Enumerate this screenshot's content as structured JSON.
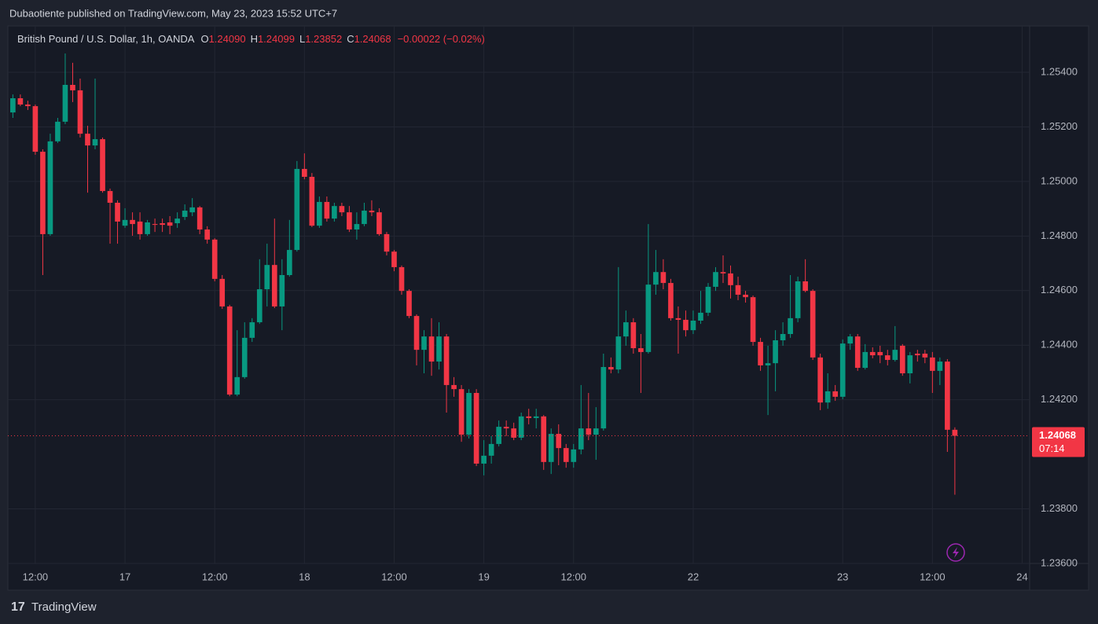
{
  "header": {
    "title": "Dubaotiente published on TradingView.com, May 23, 2023 15:52 UTC+7"
  },
  "footer": {
    "brand": "TradingView"
  },
  "chart_data": {
    "type": "candlestick",
    "legend": {
      "symbol": "British Pound / U.S. Dollar, 1h, OANDA",
      "ohlc": [
        {
          "key": "O",
          "value": "1.24090"
        },
        {
          "key": "H",
          "value": "1.24099"
        },
        {
          "key": "L",
          "value": "1.23852"
        },
        {
          "key": "C",
          "value": "1.24068"
        }
      ],
      "change": "−0.00022 (−0.02%)"
    },
    "up_color": "#089981",
    "down_color": "#f23645",
    "grid": true,
    "ylim": [
      1.236,
      1.2557
    ],
    "yticks": [
      {
        "value": 1.236,
        "label": "1.23600"
      },
      {
        "value": 1.238,
        "label": "1.23800"
      },
      {
        "value": 1.242,
        "label": "1.24200"
      },
      {
        "value": 1.244,
        "label": "1.24400"
      },
      {
        "value": 1.246,
        "label": "1.24600"
      },
      {
        "value": 1.248,
        "label": "1.24800"
      },
      {
        "value": 1.25,
        "label": "1.25000"
      },
      {
        "value": 1.252,
        "label": "1.25200"
      },
      {
        "value": 1.254,
        "label": "1.25400"
      }
    ],
    "xlim": [
      -0.67,
      136
    ],
    "xticks": [
      {
        "value": 3,
        "label": "12:00"
      },
      {
        "value": 15,
        "label": "17"
      },
      {
        "value": 27,
        "label": "12:00"
      },
      {
        "value": 39,
        "label": "18"
      },
      {
        "value": 51,
        "label": "12:00"
      },
      {
        "value": 63,
        "label": "19"
      },
      {
        "value": 75,
        "label": "12:00"
      },
      {
        "value": 91,
        "label": "22"
      },
      {
        "value": 111,
        "label": "23"
      },
      {
        "value": 123,
        "label": "12:00"
      },
      {
        "value": 135,
        "label": "24"
      }
    ],
    "last_price": {
      "value": 1.24068,
      "label": "1.24068",
      "countdown": "07:14"
    },
    "open": [
      1.25253,
      1.25305,
      1.25282,
      1.25276,
      1.25109,
      1.24807,
      1.25147,
      1.25219,
      1.25354,
      1.25334,
      1.25175,
      1.25132,
      1.25155,
      1.24965,
      1.24922,
      1.24838,
      1.24859,
      1.24853,
      1.24807,
      1.24844,
      1.24847,
      1.2485,
      1.24847,
      1.2487,
      1.24887,
      1.24905,
      1.24824,
      1.24787,
      1.24643,
      1.24542,
      1.24219,
      1.24283,
      1.24427,
      1.24484,
      1.24605,
      1.24694,
      1.24542,
      1.24657,
      1.24749,
      1.25046,
      1.25017,
      1.24838,
      1.24925,
      1.24864,
      1.2491,
      1.24887,
      1.24824,
      1.24844,
      1.24893,
      1.24887,
      1.24807,
      1.24743,
      1.24686,
      1.24599,
      1.24507,
      1.24383,
      1.24432,
      1.2434,
      1.24432,
      1.24254,
      1.24239,
      1.24072,
      1.24225,
      1.23966,
      1.23995,
      1.24038,
      1.24101,
      1.24095,
      1.24061,
      1.24139,
      1.24133,
      1.24139,
      1.23972,
      1.24075,
      1.24023,
      1.23972,
      1.24018,
      1.24095,
      1.24072,
      1.24095,
      1.2432,
      1.24311,
      1.24432,
      1.24484,
      1.24389,
      1.24375,
      1.24622,
      1.24668,
      1.24628,
      1.24499,
      1.24493,
      1.24455,
      1.2449,
      1.24519,
      1.24614,
      1.24668,
      1.24663,
      1.2462,
      1.24585,
      1.24576,
      1.24412,
      1.24326,
      1.24334,
      1.24418,
      1.24441,
      1.24499,
      1.24634,
      1.24599,
      1.24355,
      1.2419,
      1.24231,
      1.24211,
      1.24406,
      1.24432,
      1.24317,
      1.24375,
      1.24375,
      1.24363,
      1.24346,
      1.24398,
      1.24297,
      1.24369,
      1.24369,
      1.24355,
      1.24306,
      1.2434,
      1.2409
    ],
    "high": [
      1.25319,
      1.25319,
      1.25296,
      1.25282,
      1.25118,
      1.25175,
      1.25233,
      1.25469,
      1.25435,
      1.25377,
      1.25204,
      1.25377,
      1.25161,
      1.24974,
      1.24931,
      1.24902,
      1.24887,
      1.24887,
      1.24859,
      1.24864,
      1.24864,
      1.24873,
      1.24887,
      1.24916,
      1.24939,
      1.2491,
      1.24836,
      1.24792,
      1.24657,
      1.24548,
      1.24455,
      1.24484,
      1.24499,
      1.24715,
      1.24772,
      1.24864,
      1.24715,
      1.24859,
      1.25075,
      1.25103,
      1.25031,
      1.24945,
      1.24945,
      1.24922,
      1.24922,
      1.2491,
      1.24887,
      1.24922,
      1.24931,
      1.24902,
      1.24815,
      1.24749,
      1.24692,
      1.24605,
      1.24513,
      1.24455,
      1.24499,
      1.24484,
      1.24441,
      1.24283,
      1.24254,
      1.24239,
      1.24239,
      1.24052,
      1.24067,
      1.24124,
      1.24124,
      1.24116,
      1.24153,
      1.24167,
      1.24167,
      1.24144,
      1.24095,
      1.2411,
      1.24038,
      1.24038,
      1.24254,
      1.24225,
      1.24173,
      1.24369,
      1.24355,
      1.24686,
      1.24527,
      1.24499,
      1.24441,
      1.24844,
      1.24749,
      1.24715,
      1.24643,
      1.24542,
      1.24527,
      1.24527,
      1.24599,
      1.24628,
      1.24686,
      1.24729,
      1.24692,
      1.24651,
      1.24599,
      1.24582,
      1.24427,
      1.24398,
      1.24455,
      1.24484,
      1.24657,
      1.24651,
      1.24715,
      1.24605,
      1.24369,
      1.24297,
      1.24254,
      1.24421,
      1.24441,
      1.24441,
      1.24404,
      1.24392,
      1.24398,
      1.24383,
      1.2447,
      1.24404,
      1.24375,
      1.24383,
      1.24383,
      1.24375,
      1.24355,
      1.24349,
      1.24099
    ],
    "low": [
      1.25233,
      1.25276,
      1.25262,
      1.25098,
      1.24657,
      1.24801,
      1.25141,
      1.2521,
      1.25291,
      1.25161,
      1.24959,
      1.25118,
      1.24959,
      1.24772,
      1.24772,
      1.2483,
      1.24801,
      1.24787,
      1.24801,
      1.24815,
      1.24815,
      1.24807,
      1.2483,
      1.24859,
      1.24873,
      1.24807,
      1.24772,
      1.24634,
      1.24533,
      1.24213,
      1.24213,
      1.24277,
      1.24412,
      1.24478,
      1.24542,
      1.24536,
      1.24455,
      1.24651,
      1.24743,
      1.25008,
      1.24833,
      1.2483,
      1.24853,
      1.24853,
      1.24873,
      1.24815,
      1.24787,
      1.24836,
      1.24873,
      1.24801,
      1.24729,
      1.24671,
      1.24585,
      1.24499,
      1.24326,
      1.24297,
      1.24288,
      1.24311,
      1.24153,
      1.24211,
      1.24046,
      1.24058,
      1.23957,
      1.23923,
      1.23966,
      1.24029,
      1.24067,
      1.24052,
      1.24052,
      1.2411,
      1.24095,
      1.23943,
      1.23928,
      1.2396,
      1.23951,
      1.23951,
      1.24,
      1.24052,
      1.2398,
      1.24087,
      1.24297,
      1.24297,
      1.24398,
      1.24369,
      1.24225,
      1.24369,
      1.24585,
      1.24605,
      1.2449,
      1.24369,
      1.24432,
      1.24441,
      1.24478,
      1.24507,
      1.24599,
      1.24628,
      1.24571,
      1.24565,
      1.24556,
      1.24398,
      1.24306,
      1.24144,
      1.24231,
      1.24398,
      1.24427,
      1.24484,
      1.24594,
      1.24346,
      1.24162,
      1.24167,
      1.24196,
      1.24202,
      1.24383,
      1.24306,
      1.24311,
      1.24352,
      1.24334,
      1.24326,
      1.2434,
      1.24288,
      1.2426,
      1.2434,
      1.24334,
      1.24225,
      1.24254,
      1.24009,
      1.23852
    ],
    "close": [
      1.25305,
      1.25282,
      1.25276,
      1.25109,
      1.24807,
      1.25147,
      1.25219,
      1.25354,
      1.25334,
      1.25175,
      1.25132,
      1.25155,
      1.24965,
      1.24922,
      1.24853,
      1.24859,
      1.24844,
      1.24807,
      1.2485,
      1.24841,
      1.24841,
      1.24838,
      1.24864,
      1.24893,
      1.24905,
      1.24824,
      1.24787,
      1.24643,
      1.24542,
      1.24219,
      1.24283,
      1.24427,
      1.24484,
      1.24605,
      1.24694,
      1.24542,
      1.24657,
      1.24749,
      1.25046,
      1.25017,
      1.24838,
      1.24925,
      1.24864,
      1.2491,
      1.24887,
      1.24824,
      1.24844,
      1.24893,
      1.24887,
      1.24807,
      1.24743,
      1.24686,
      1.24599,
      1.24507,
      1.24383,
      1.24432,
      1.2434,
      1.24432,
      1.24254,
      1.24239,
      1.24072,
      1.24225,
      1.23966,
      1.23995,
      1.24038,
      1.24101,
      1.24095,
      1.24061,
      1.24139,
      1.24133,
      1.24139,
      1.23972,
      1.24075,
      1.24023,
      1.23972,
      1.24018,
      1.24095,
      1.24072,
      1.24095,
      1.2432,
      1.24311,
      1.24432,
      1.24484,
      1.24389,
      1.24375,
      1.24622,
      1.24668,
      1.24628,
      1.24499,
      1.24493,
      1.24455,
      1.2449,
      1.24519,
      1.24614,
      1.24668,
      1.24663,
      1.2462,
      1.24585,
      1.24576,
      1.24412,
      1.24326,
      1.24334,
      1.24418,
      1.24441,
      1.24499,
      1.24634,
      1.24599,
      1.24355,
      1.2419,
      1.24231,
      1.24211,
      1.24406,
      1.24432,
      1.24317,
      1.24375,
      1.24363,
      1.24363,
      1.24346,
      1.24383,
      1.24297,
      1.24363,
      1.24363,
      1.24355,
      1.24306,
      1.2434,
      1.2409,
      1.24068
    ]
  }
}
